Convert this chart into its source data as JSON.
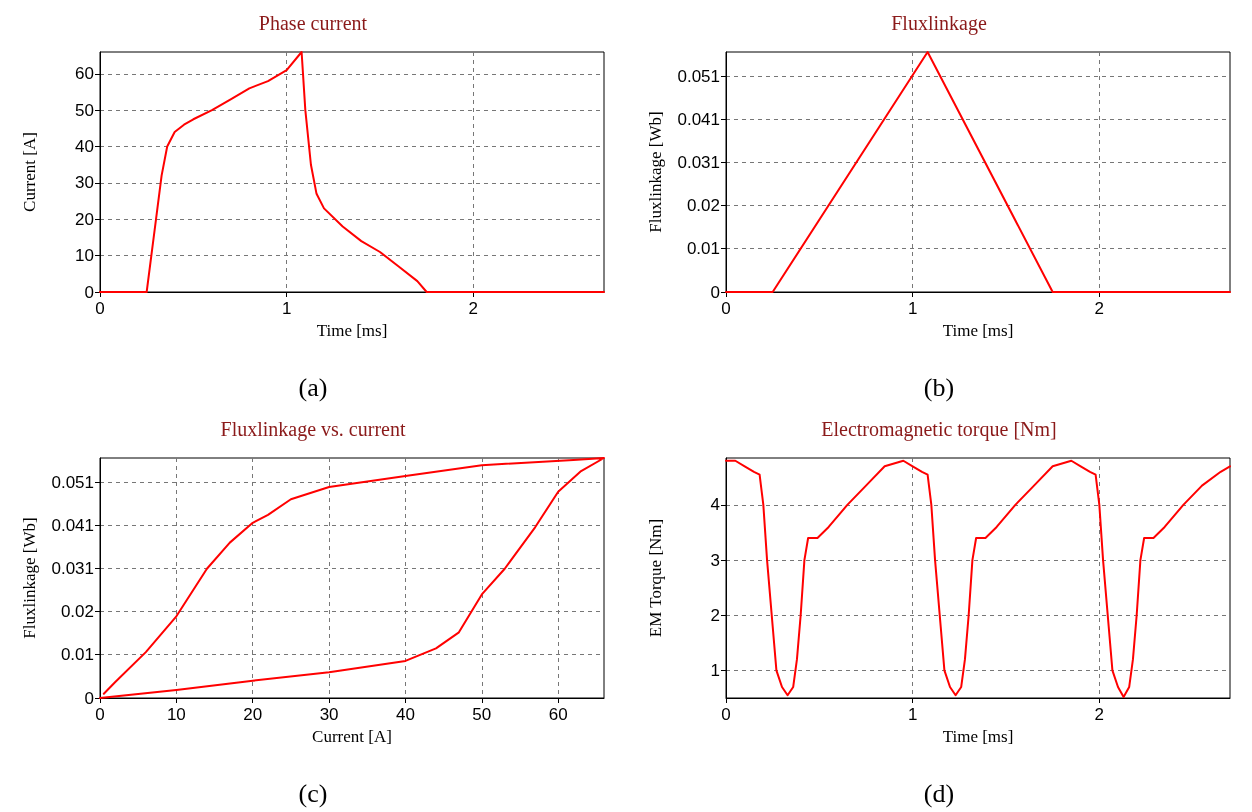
{
  "chart_data": [
    {
      "type": "line",
      "title": "Phase current",
      "xlabel": "Time [ms]",
      "ylabel": "Current [A]",
      "annotations": [
        "(a)"
      ],
      "xlim": [
        0,
        2.7
      ],
      "xticks": [
        0,
        1,
        2
      ],
      "ylim": [
        0,
        66
      ],
      "yticks": [
        0,
        10,
        20,
        30,
        40,
        50,
        60
      ],
      "grid": true,
      "marker": "none",
      "line_style": "solid",
      "series": [
        {
          "color": "#ff0000",
          "x": [
            0,
            0.25,
            0.3,
            0.33,
            0.36,
            0.4,
            0.45,
            0.5,
            0.6,
            0.7,
            0.8,
            0.9,
            1.0,
            1.08,
            1.1,
            1.13,
            1.16,
            1.2,
            1.3,
            1.4,
            1.5,
            1.6,
            1.7,
            1.75,
            2.7
          ],
          "values": [
            0,
            0,
            20,
            32,
            40,
            44,
            46,
            47.5,
            50,
            53,
            56,
            58,
            61,
            66,
            50,
            35,
            27,
            23,
            18,
            14,
            11,
            7,
            3,
            0,
            0
          ]
        }
      ]
    },
    {
      "type": "line",
      "title": "Fluxlinkage",
      "xlabel": "Time [ms]",
      "ylabel": "Fluxlinkage [Wb]",
      "annotations": [
        "(b)"
      ],
      "xlim": [
        0,
        2.7
      ],
      "xticks": [
        0,
        1,
        2
      ],
      "ylim": [
        0,
        0.057
      ],
      "yticks": [
        0,
        {
          "value": 0.0103,
          "label": "0.01"
        },
        {
          "value": 0.0205,
          "label": "0.02"
        },
        {
          "value": 0.0308,
          "label": "0.031"
        },
        {
          "value": 0.041,
          "label": "0.041"
        },
        {
          "value": 0.0513,
          "label": "0.051"
        }
      ],
      "grid": true,
      "marker": "none",
      "line_style": "solid",
      "series": [
        {
          "color": "#ff0000",
          "x": [
            0,
            0.25,
            1.08,
            1.75,
            2.7
          ],
          "values": [
            0,
            0,
            0.057,
            0,
            0
          ]
        }
      ]
    },
    {
      "type": "line",
      "title": "Fluxlinkage vs. current",
      "xlabel": "Current [A]",
      "ylabel": "Fluxlinkage [Wb]",
      "annotations": [
        "(c)"
      ],
      "xlim": [
        0,
        66
      ],
      "xticks": [
        0,
        10,
        20,
        30,
        40,
        50,
        60
      ],
      "ylim": [
        0,
        0.057
      ],
      "yticks": [
        0,
        {
          "value": 0.0103,
          "label": "0.01"
        },
        {
          "value": 0.0205,
          "label": "0.02"
        },
        {
          "value": 0.0308,
          "label": "0.031"
        },
        {
          "value": 0.041,
          "label": "0.041"
        },
        {
          "value": 0.0513,
          "label": "0.051"
        }
      ],
      "grid": true,
      "marker": "none",
      "line_style": "solid",
      "series": [
        {
          "color": "#ff0000",
          "x": [
            0,
            10,
            20,
            30,
            40,
            44,
            47,
            50,
            53,
            57,
            60,
            63,
            66,
            62,
            50,
            40,
            30,
            25,
            22,
            20,
            17,
            14,
            10,
            6,
            2,
            0.5
          ],
          "values": [
            0,
            0.0019,
            0.0041,
            0.0061,
            0.0088,
            0.0118,
            0.0156,
            0.0246,
            0.0307,
            0.0406,
            0.049,
            0.0539,
            0.057,
            0.0565,
            0.0553,
            0.0527,
            0.0501,
            0.0472,
            0.0435,
            0.0416,
            0.0369,
            0.0307,
            0.0194,
            0.0109,
            0.0038,
            0.001
          ]
        }
      ]
    },
    {
      "type": "line",
      "title": "Electromagnetic torque [Nm]",
      "xlabel": "Time [ms]",
      "ylabel": "EM Torque [Nm]",
      "annotations": [
        "(d)"
      ],
      "xlim": [
        0,
        2.7
      ],
      "xticks": [
        0,
        1,
        2
      ],
      "ylim": [
        0.5,
        4.85
      ],
      "yticks": [
        1,
        2,
        3,
        4
      ],
      "grid": true,
      "marker": "none",
      "line_style": "solid",
      "series": [
        {
          "color": "#ff0000",
          "x": [
            0,
            0.05,
            0.1,
            0.15,
            0.18,
            0.2,
            0.22,
            0.25,
            0.27,
            0.3,
            0.33,
            0.36,
            0.38,
            0.4,
            0.42,
            0.44,
            0.49,
            0.55,
            0.65,
            0.75,
            0.85,
            0.95,
            1.0,
            1.05,
            1.08,
            1.1,
            1.12,
            1.15,
            1.17,
            1.2,
            1.23,
            1.26,
            1.28,
            1.3,
            1.32,
            1.34,
            1.39,
            1.45,
            1.55,
            1.65,
            1.75,
            1.85,
            1.9,
            1.95,
            1.98,
            2.0,
            2.02,
            2.05,
            2.07,
            2.1,
            2.13,
            2.16,
            2.18,
            2.2,
            2.22,
            2.24,
            2.29,
            2.35,
            2.45,
            2.55,
            2.65,
            2.7
          ],
          "values": [
            4.8,
            4.8,
            4.7,
            4.6,
            4.55,
            4.0,
            3.0,
            1.8,
            1.0,
            0.7,
            0.55,
            0.7,
            1.2,
            2.0,
            3.0,
            3.4,
            3.4,
            3.6,
            4.0,
            4.35,
            4.7,
            4.8,
            4.7,
            4.6,
            4.55,
            4.0,
            3.0,
            1.8,
            1.0,
            0.7,
            0.55,
            0.7,
            1.2,
            2.0,
            3.0,
            3.4,
            3.4,
            3.6,
            4.0,
            4.35,
            4.7,
            4.8,
            4.7,
            4.6,
            4.55,
            4.0,
            3.0,
            1.8,
            1.0,
            0.7,
            0.52,
            0.7,
            1.2,
            2.0,
            3.0,
            3.4,
            3.4,
            3.6,
            4.0,
            4.35,
            4.6,
            4.7
          ]
        }
      ]
    }
  ]
}
